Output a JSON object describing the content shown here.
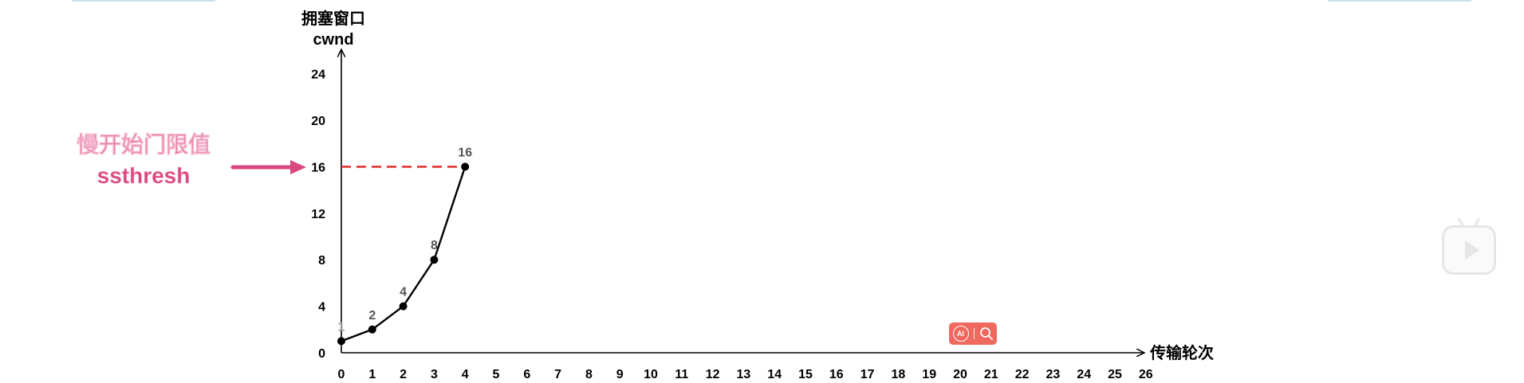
{
  "annotation": {
    "line1": "慢开始门限值",
    "line2": "ssthresh",
    "color": "#d9487f"
  },
  "badge": {
    "ai_label": "AI",
    "icon": "search-icon"
  },
  "play": {
    "icon": "play-icon"
  },
  "chart_data": {
    "type": "line",
    "ylabel_line1": "拥塞窗口",
    "ylabel_line2": "cwnd",
    "xlabel": "传输轮次",
    "x_ticks": [
      0,
      1,
      2,
      3,
      4,
      5,
      6,
      7,
      8,
      9,
      10,
      11,
      12,
      13,
      14,
      15,
      16,
      17,
      18,
      19,
      20,
      21,
      22,
      23,
      24,
      25,
      26
    ],
    "y_ticks": [
      0,
      4,
      8,
      12,
      16,
      20,
      24
    ],
    "xlim": [
      0,
      26
    ],
    "ylim": [
      0,
      26
    ],
    "grid": false,
    "series": [
      {
        "x": [
          0,
          1,
          2,
          3,
          4
        ],
        "y": [
          1,
          2,
          4,
          8,
          16
        ],
        "labels": [
          "1",
          "2",
          "4",
          "8",
          "16"
        ],
        "color": "#000000"
      }
    ],
    "threshold": {
      "y": 16,
      "x_start": 0,
      "x_end": 4,
      "color": "#e02020",
      "style": "dashed"
    }
  }
}
